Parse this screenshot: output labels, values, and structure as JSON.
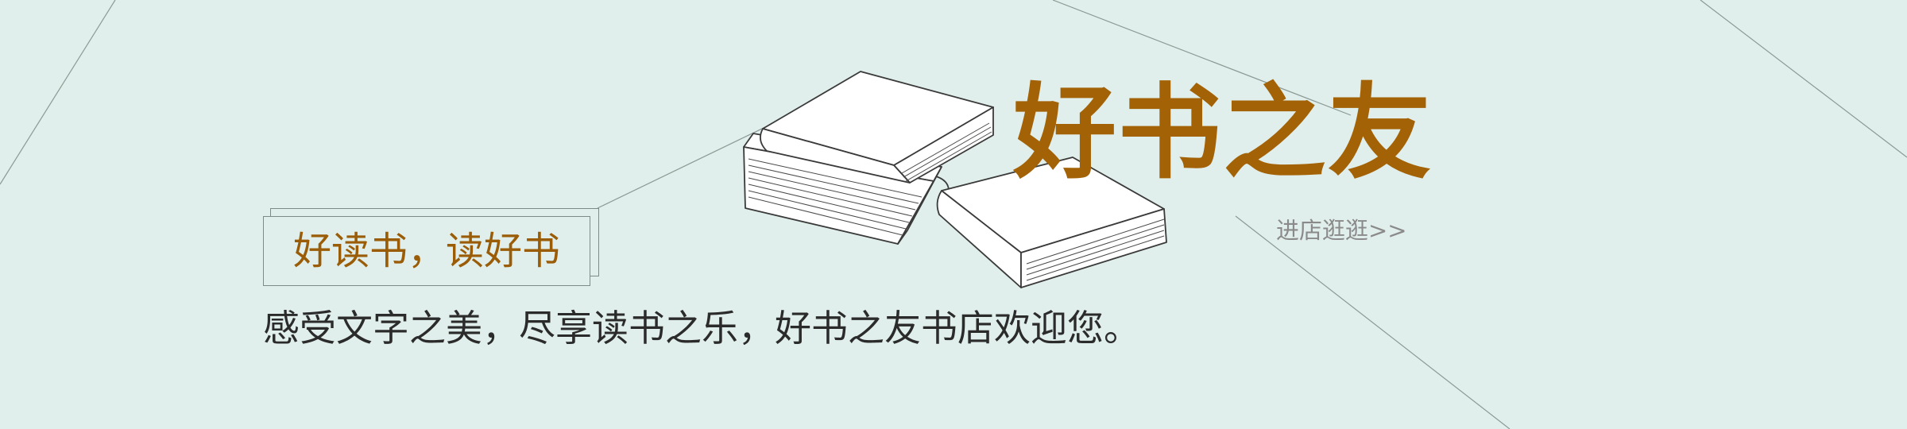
{
  "banner": {
    "brand_title": "好书之友",
    "store_link": "进店逛逛>>",
    "slogan": "好读书，读好书",
    "welcome_text": "感受文字之美，尽享读书之乐，好书之友书店欢迎您。"
  },
  "icons": {
    "books": "stacked-books-illustration"
  },
  "colors": {
    "background": "#e0efeb",
    "brand": "#a46206",
    "slogan": "#9a5c06",
    "body_text": "#2b2b2b",
    "link": "#8a8a8a",
    "line": "#7d8a86"
  }
}
